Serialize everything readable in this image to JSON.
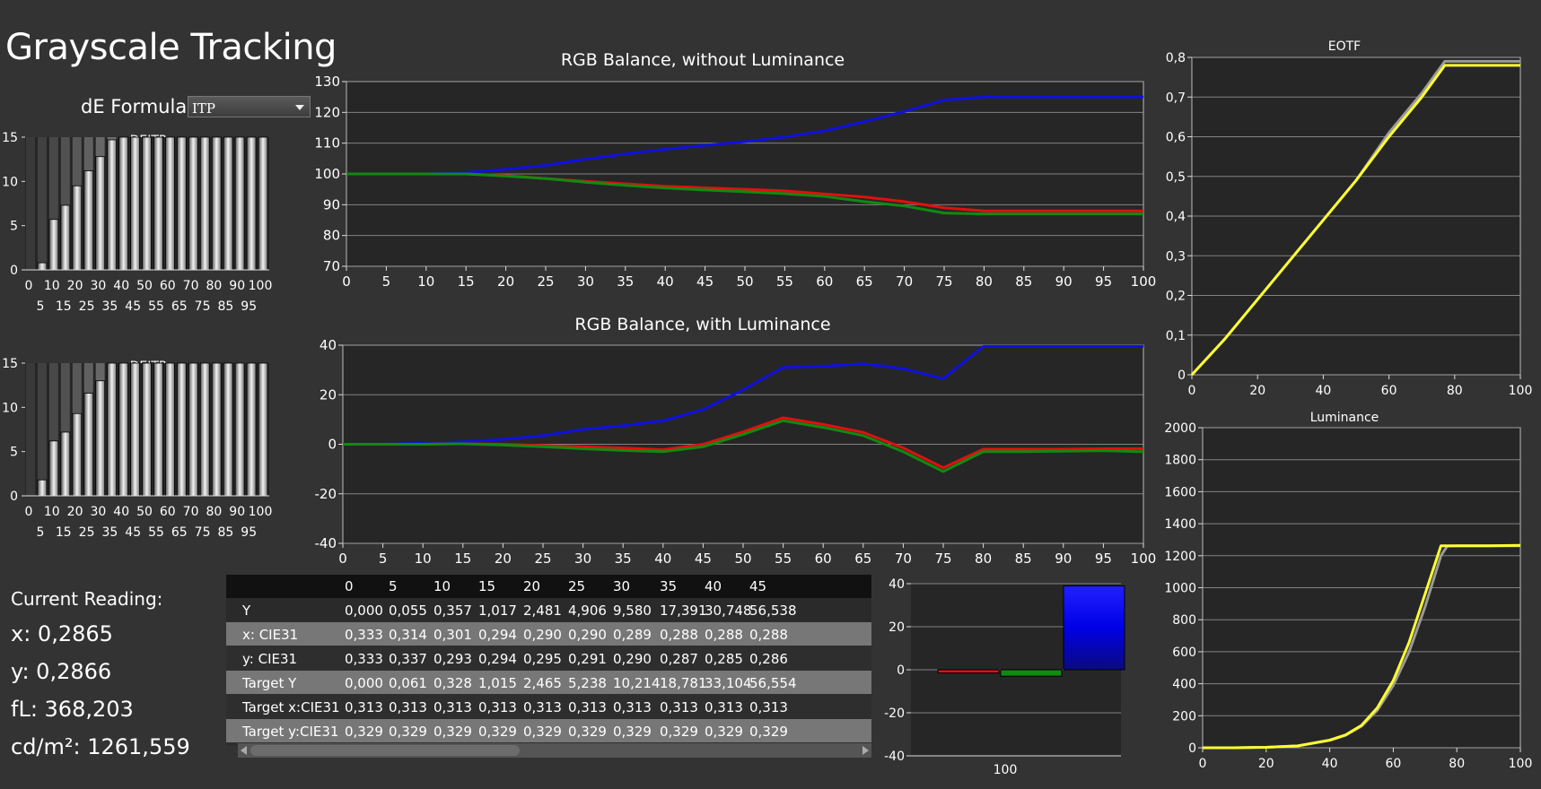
{
  "page": {
    "title": "Grayscale Tracking",
    "formula_label": "dE Formula:",
    "formula_value": "ITP"
  },
  "reading": {
    "title": "Current Reading:",
    "x": "x: 0,2865",
    "y": "y: 0,2866",
    "fl": "fL: 368,203",
    "cdm2": "cd/m²: 1261,559"
  },
  "colors": {
    "background": "#333333",
    "plot_bg": "#262626",
    "red": "#e01010",
    "green": "#108a10",
    "blue": "#1010e0",
    "yellow": "#ffff33",
    "gray": "#9a9a9a"
  },
  "table": {
    "columns": [
      "0",
      "5",
      "10",
      "15",
      "20",
      "25",
      "30",
      "35",
      "40",
      "45"
    ],
    "rows": [
      {
        "label": "Y",
        "values": [
          "0,000",
          "0,055",
          "0,357",
          "1,017",
          "2,481",
          "4,906",
          "9,580",
          "17,391",
          "30,748",
          "56,538"
        ]
      },
      {
        "label": "x: CIE31",
        "values": [
          "0,333",
          "0,314",
          "0,301",
          "0,294",
          "0,290",
          "0,290",
          "0,289",
          "0,288",
          "0,288",
          "0,288"
        ]
      },
      {
        "label": "y: CIE31",
        "values": [
          "0,333",
          "0,337",
          "0,293",
          "0,294",
          "0,295",
          "0,291",
          "0,290",
          "0,287",
          "0,285",
          "0,286"
        ]
      },
      {
        "label": "Target Y",
        "values": [
          "0,000",
          "0,061",
          "0,328",
          "1,015",
          "2,465",
          "5,238",
          "10,214",
          "18,781",
          "33,104",
          "56,554"
        ]
      },
      {
        "label": "Target x:CIE31",
        "values": [
          "0,313",
          "0,313",
          "0,313",
          "0,313",
          "0,313",
          "0,313",
          "0,313",
          "0,313",
          "0,313",
          "0,313"
        ]
      },
      {
        "label": "Target y:CIE31",
        "values": [
          "0,329",
          "0,329",
          "0,329",
          "0,329",
          "0,329",
          "0,329",
          "0,329",
          "0,329",
          "0,329",
          "0,329"
        ]
      }
    ]
  },
  "chart_data": [
    {
      "id": "deitp1",
      "type": "bar",
      "title": "DEITP",
      "x": [
        0,
        5,
        10,
        15,
        20,
        25,
        30,
        35,
        40,
        45,
        50,
        55,
        60,
        65,
        70,
        75,
        80,
        85,
        90,
        95,
        100
      ],
      "values": [
        0,
        0.8,
        5.7,
        7.3,
        9.5,
        11.2,
        12.8,
        14.7,
        15,
        15,
        15,
        15,
        15,
        15,
        15,
        15,
        15,
        15,
        15,
        15,
        15
      ],
      "ylim": [
        0,
        15
      ],
      "yticks": [
        0,
        5,
        10,
        15
      ],
      "xticks_top": [
        "0",
        "10",
        "20",
        "30",
        "40",
        "50",
        "60",
        "70",
        "80",
        "90",
        "100"
      ],
      "xticks_bottom": [
        "5",
        "15",
        "25",
        "35",
        "45",
        "55",
        "65",
        "75",
        "85",
        "95"
      ]
    },
    {
      "id": "deitp2",
      "type": "bar",
      "title": "DEITP",
      "x": [
        0,
        5,
        10,
        15,
        20,
        25,
        30,
        35,
        40,
        45,
        50,
        55,
        60,
        65,
        70,
        75,
        80,
        85,
        90,
        95,
        100
      ],
      "values": [
        0,
        1.8,
        6.2,
        7.2,
        9.3,
        11.6,
        13.0,
        15,
        15,
        15,
        15,
        15,
        15,
        15,
        15,
        15,
        15,
        15,
        15,
        15,
        15
      ],
      "ylim": [
        0,
        15
      ],
      "yticks": [
        0,
        5,
        10,
        15
      ],
      "xticks_top": [
        "0",
        "10",
        "20",
        "30",
        "40",
        "50",
        "60",
        "70",
        "80",
        "90",
        "100"
      ],
      "xticks_bottom": [
        "5",
        "15",
        "25",
        "35",
        "45",
        "55",
        "65",
        "75",
        "85",
        "95"
      ]
    },
    {
      "id": "rgb1",
      "type": "line",
      "title": "RGB Balance, without Luminance",
      "x": [
        0,
        5,
        10,
        15,
        20,
        25,
        30,
        35,
        40,
        45,
        50,
        55,
        60,
        65,
        70,
        75,
        80,
        85,
        90,
        95,
        100
      ],
      "series": [
        {
          "color": "blue",
          "values": [
            100,
            100,
            100,
            100.5,
            101.5,
            102.8,
            104.8,
            106.5,
            108,
            109.3,
            110.5,
            112,
            114,
            117,
            120.3,
            124,
            125,
            125,
            125,
            125,
            125
          ]
        },
        {
          "color": "red",
          "values": [
            100,
            100,
            100,
            100,
            99.5,
            98.5,
            97.6,
            96.8,
            96,
            95.5,
            95,
            94.5,
            93.5,
            92.5,
            91,
            89,
            88,
            88,
            88,
            88,
            88
          ]
        },
        {
          "color": "green",
          "values": [
            100,
            100,
            100,
            100,
            99.3,
            98.5,
            97.3,
            96.3,
            95.4,
            94.8,
            94.2,
            93.6,
            92.7,
            91,
            89.6,
            87.3,
            87,
            87,
            87,
            87,
            87
          ]
        }
      ],
      "ylim": [
        70,
        130
      ],
      "yticks": [
        70,
        80,
        90,
        100,
        110,
        120,
        130
      ],
      "xticks": [
        0,
        5,
        10,
        15,
        20,
        25,
        30,
        35,
        40,
        45,
        50,
        55,
        60,
        65,
        70,
        75,
        80,
        85,
        90,
        95,
        100
      ]
    },
    {
      "id": "rgb2",
      "type": "line",
      "title": "RGB Balance, with Luminance",
      "x": [
        0,
        5,
        10,
        15,
        20,
        25,
        30,
        35,
        40,
        45,
        50,
        55,
        60,
        65,
        70,
        75,
        80,
        85,
        90,
        95,
        100
      ],
      "series": [
        {
          "color": "blue",
          "values": [
            0,
            0,
            0.5,
            1,
            2,
            3.5,
            6,
            7.5,
            9.5,
            14,
            22,
            31,
            31.5,
            32.5,
            30.5,
            26.5,
            39.5,
            39.5,
            39.5,
            39.5,
            39.5
          ]
        },
        {
          "color": "red",
          "values": [
            0,
            0,
            0,
            0.2,
            0,
            -0.5,
            -1,
            -1.5,
            -2.2,
            0,
            5,
            10.7,
            8,
            4.8,
            -1.5,
            -9.5,
            -2,
            -2,
            -2,
            -1.8,
            -1.8
          ]
        },
        {
          "color": "green",
          "values": [
            0,
            0,
            0,
            0.2,
            -0.3,
            -1,
            -1.8,
            -2.5,
            -3,
            -1,
            4,
            9.5,
            6.8,
            3.5,
            -3,
            -11,
            -3,
            -3,
            -2.8,
            -2.6,
            -3
          ]
        }
      ],
      "ylim": [
        -40,
        40
      ],
      "yticks": [
        -40,
        -20,
        0,
        20,
        40
      ],
      "xticks": [
        0,
        5,
        10,
        15,
        20,
        25,
        30,
        35,
        40,
        45,
        50,
        55,
        60,
        65,
        70,
        75,
        80,
        85,
        90,
        95,
        100
      ]
    },
    {
      "id": "eotf",
      "type": "line",
      "title": "EOTF",
      "x": [
        0,
        10,
        20,
        30,
        40,
        50,
        60,
        70,
        77,
        80,
        90,
        100
      ],
      "series": [
        {
          "color": "gray",
          "values": [
            0,
            0.09,
            0.19,
            0.29,
            0.39,
            0.49,
            0.61,
            0.71,
            0.79,
            0.79,
            0.79,
            0.79
          ]
        },
        {
          "color": "yellow",
          "values": [
            0,
            0.09,
            0.19,
            0.29,
            0.39,
            0.49,
            0.6,
            0.7,
            0.78,
            0.78,
            0.78,
            0.78
          ]
        }
      ],
      "ylim": [
        0,
        0.8
      ],
      "yticks": [
        "0",
        "0,1",
        "0,2",
        "0,3",
        "0,4",
        "0,5",
        "0,6",
        "0,7",
        "0,8"
      ],
      "xticks": [
        0,
        20,
        40,
        60,
        80,
        100
      ]
    },
    {
      "id": "lum",
      "type": "line",
      "title": "Luminance",
      "x": [
        0,
        10,
        20,
        30,
        40,
        45,
        50,
        55,
        60,
        65,
        70,
        75,
        77,
        80,
        90,
        100
      ],
      "series": [
        {
          "color": "gray",
          "values": [
            0,
            0,
            3,
            12,
            46,
            78,
            135,
            235,
            390,
            600,
            880,
            1200,
            1260,
            1262,
            1262,
            1262
          ]
        },
        {
          "color": "yellow",
          "values": [
            0,
            0,
            3,
            12,
            48,
            80,
            140,
            250,
            420,
            660,
            960,
            1262,
            1262,
            1262,
            1262,
            1265
          ]
        }
      ],
      "ylim": [
        0,
        2000
      ],
      "yticks": [
        0,
        200,
        400,
        600,
        800,
        1000,
        1200,
        1400,
        1600,
        1800,
        2000
      ],
      "xticks": [
        0,
        20,
        40,
        60,
        80,
        100
      ]
    },
    {
      "id": "rgbbar",
      "type": "bar",
      "categories": [
        "100"
      ],
      "series": [
        {
          "color": "red",
          "values": [
            -1.5
          ]
        },
        {
          "color": "green",
          "values": [
            -3
          ]
        },
        {
          "color": "blue",
          "values": [
            39
          ]
        }
      ],
      "ylim": [
        -40,
        40
      ],
      "yticks": [
        -40,
        -20,
        0,
        20,
        40
      ]
    }
  ]
}
